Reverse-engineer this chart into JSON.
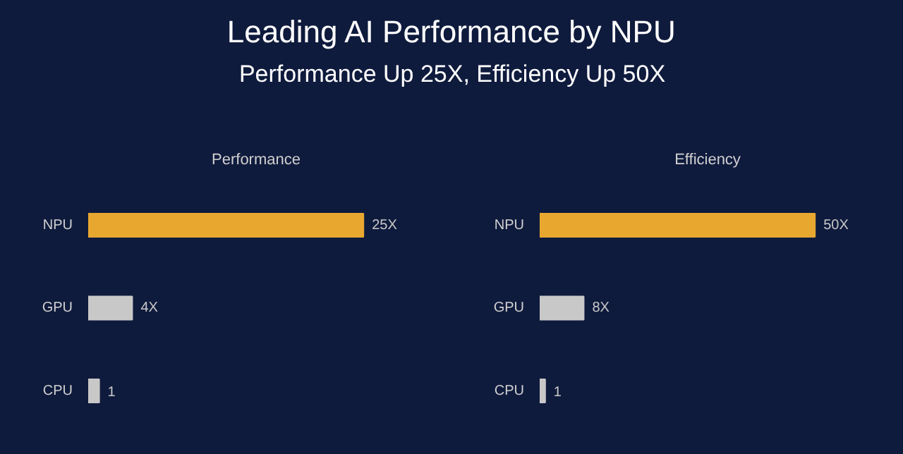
{
  "chart_data": [
    {
      "type": "bar",
      "orientation": "horizontal",
      "title": "Performance",
      "annotations": [
        "Leading AI Performance by NPU",
        "Performance Up 25X, Efficiency Up 50X"
      ],
      "categories": [
        "NPU",
        "GPU",
        "CPU"
      ],
      "values": [
        25,
        4,
        1
      ],
      "colors": [
        "#e8a830",
        "#c8c8c8",
        "#c8c8c8"
      ],
      "value_labels": [
        "25X",
        "4X",
        "1"
      ]
    },
    {
      "type": "bar",
      "orientation": "horizontal",
      "title": "Efficiency",
      "categories": [
        "NPU",
        "GPU",
        "CPU"
      ],
      "values": [
        50,
        8,
        1
      ],
      "colors": [
        "#e8a830",
        "#c8c8c8",
        "#c8c8c8"
      ],
      "value_labels": [
        "50X",
        "8X",
        "1"
      ]
    }
  ]
}
